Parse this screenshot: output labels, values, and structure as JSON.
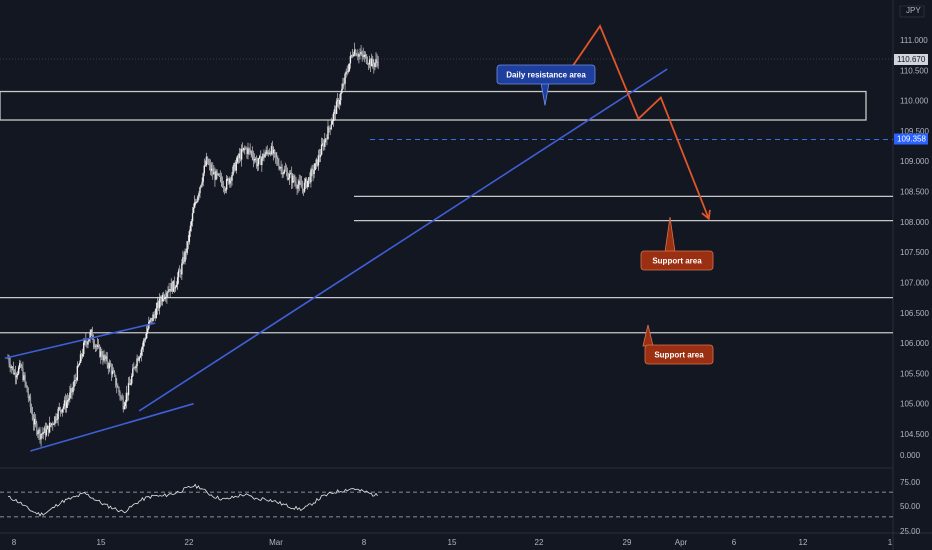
{
  "symbol_currency": "JPY",
  "colors": {
    "background": "#131722",
    "candle": "#e8e8e8",
    "trend": "#3f5fd8",
    "forecast": "#e0552a",
    "zone": "#c8c8c8",
    "dashed": "#3a6ee8",
    "callout_blue": "#1e3f9e",
    "callout_red": "#9a2f12"
  },
  "chart_data": {
    "type": "line",
    "price_axis": {
      "ticks": [
        "111.000",
        "110.500",
        "110.000",
        "109.500",
        "109.000",
        "108.500",
        "108.000",
        "107.500",
        "107.000",
        "106.500",
        "106.000",
        "105.500",
        "105.000",
        "104.500"
      ],
      "range": [
        104.26,
        111.4
      ]
    },
    "time_axis": {
      "labels": [
        "8",
        "15",
        "22",
        "Mar",
        "8",
        "15",
        "22",
        "29",
        "Apr",
        "6",
        "12",
        "1"
      ]
    },
    "current_price": "110.670",
    "level_tag": "109.358",
    "price_series": [
      {
        "d": 8,
        "v": 105.75
      },
      {
        "d": 9,
        "v": 105.5
      },
      {
        "d": 10,
        "v": 105.6
      },
      {
        "d": 11,
        "v": 105.2
      },
      {
        "d": 12,
        "v": 104.7
      },
      {
        "d": 13,
        "v": 104.5
      },
      {
        "d": 14,
        "v": 104.55
      },
      {
        "d": 15,
        "v": 104.7
      },
      {
        "d": 16,
        "v": 104.9
      },
      {
        "d": 17,
        "v": 105.0
      },
      {
        "d": 18,
        "v": 105.2
      },
      {
        "d": 19,
        "v": 105.6
      },
      {
        "d": 20,
        "v": 106.0
      },
      {
        "d": 21,
        "v": 106.15
      },
      {
        "d": 22,
        "v": 105.9
      },
      {
        "d": 23,
        "v": 105.75
      },
      {
        "d": 24,
        "v": 105.6
      },
      {
        "d": 25,
        "v": 105.3
      },
      {
        "d": 26,
        "v": 105.0
      },
      {
        "d": 27,
        "v": 105.3
      },
      {
        "d": 28,
        "v": 105.7
      },
      {
        "d": 29,
        "v": 105.95
      },
      {
        "d": 30,
        "v": 106.3
      },
      {
        "d": 31,
        "v": 106.5
      },
      {
        "d": 32,
        "v": 106.75
      },
      {
        "d": 33,
        "v": 106.9
      },
      {
        "d": 34,
        "v": 106.95
      },
      {
        "d": 35,
        "v": 107.2
      },
      {
        "d": 36,
        "v": 107.6
      },
      {
        "d": 37,
        "v": 108.2
      },
      {
        "d": 38,
        "v": 108.6
      },
      {
        "d": 39,
        "v": 109.0
      },
      {
        "d": 40,
        "v": 108.8
      },
      {
        "d": 41,
        "v": 108.7
      },
      {
        "d": 42,
        "v": 108.6
      },
      {
        "d": 43,
        "v": 108.8
      },
      {
        "d": 44,
        "v": 109.05
      },
      {
        "d": 45,
        "v": 109.2
      },
      {
        "d": 46,
        "v": 109.15
      },
      {
        "d": 47,
        "v": 108.95
      },
      {
        "d": 48,
        "v": 109.1
      },
      {
        "d": 49,
        "v": 109.2
      },
      {
        "d": 50,
        "v": 109.0
      },
      {
        "d": 51,
        "v": 108.85
      },
      {
        "d": 52,
        "v": 108.75
      },
      {
        "d": 53,
        "v": 108.65
      },
      {
        "d": 54,
        "v": 108.55
      },
      {
        "d": 55,
        "v": 108.7
      },
      {
        "d": 56,
        "v": 108.9
      },
      {
        "d": 57,
        "v": 109.2
      },
      {
        "d": 58,
        "v": 109.5
      },
      {
        "d": 59,
        "v": 109.8
      },
      {
        "d": 60,
        "v": 110.1
      },
      {
        "d": 61,
        "v": 110.5
      },
      {
        "d": 62,
        "v": 110.85
      },
      {
        "d": 63,
        "v": 110.75
      },
      {
        "d": 64,
        "v": 110.7
      },
      {
        "d": 65,
        "v": 110.6
      },
      {
        "d": 66,
        "v": 110.67
      }
    ],
    "drawings": {
      "resistance_zone": [
        109.68,
        110.15
      ],
      "support_lines": [
        108.42,
        108.02,
        106.75,
        106.17
      ],
      "dashed_level": 109.358,
      "lower_channel": [
        {
          "d": 11.5,
          "v": 104.22
        },
        {
          "d": 37,
          "v": 105.0
        }
      ],
      "upper_channel": [
        {
          "d": 7.5,
          "v": 105.75
        },
        {
          "d": 31,
          "v": 106.33
        }
      ],
      "main_trend": [
        {
          "d": 28.5,
          "v": 104.88
        },
        {
          "d": 111,
          "v": 110.52
        }
      ],
      "forecast_path": [
        {
          "d": 95,
          "v": 110.38
        },
        {
          "d": 100.5,
          "v": 111.23
        },
        {
          "d": 106.5,
          "v": 109.7
        },
        {
          "d": 110,
          "v": 110.05
        },
        {
          "d": 117.5,
          "v": 108.05
        }
      ]
    },
    "callouts": [
      {
        "text": "Daily resistance area",
        "anchor": {
          "d": 71,
          "v": 109.92
        },
        "style": "blue"
      },
      {
        "text": "Support area",
        "anchor": {
          "d": 86,
          "v": 108.08
        },
        "style": "red"
      },
      {
        "text": "Support area",
        "anchor": {
          "d": 86,
          "v": 106.3
        },
        "style": "red"
      }
    ],
    "rsi": {
      "ticks": [
        "0.000",
        "75.00",
        "50.00",
        "25.00"
      ],
      "upper": 70,
      "lower": 30,
      "range": [
        0,
        100
      ],
      "series": [
        {
          "d": 8,
          "v": 62
        },
        {
          "d": 9,
          "v": 58
        },
        {
          "d": 10,
          "v": 52
        },
        {
          "d": 11,
          "v": 44
        },
        {
          "d": 12,
          "v": 38
        },
        {
          "d": 13,
          "v": 34
        },
        {
          "d": 14,
          "v": 37
        },
        {
          "d": 15,
          "v": 44
        },
        {
          "d": 16,
          "v": 52
        },
        {
          "d": 17,
          "v": 57
        },
        {
          "d": 18,
          "v": 60
        },
        {
          "d": 19,
          "v": 64
        },
        {
          "d": 20,
          "v": 68
        },
        {
          "d": 21,
          "v": 62
        },
        {
          "d": 22,
          "v": 56
        },
        {
          "d": 23,
          "v": 50
        },
        {
          "d": 24,
          "v": 46
        },
        {
          "d": 25,
          "v": 42
        },
        {
          "d": 26,
          "v": 38
        },
        {
          "d": 27,
          "v": 44
        },
        {
          "d": 28,
          "v": 52
        },
        {
          "d": 29,
          "v": 58
        },
        {
          "d": 30,
          "v": 62
        },
        {
          "d": 31,
          "v": 64
        },
        {
          "d": 32,
          "v": 63
        },
        {
          "d": 33,
          "v": 66
        },
        {
          "d": 34,
          "v": 68
        },
        {
          "d": 35,
          "v": 72
        },
        {
          "d": 36,
          "v": 76
        },
        {
          "d": 37,
          "v": 80
        },
        {
          "d": 38,
          "v": 78
        },
        {
          "d": 39,
          "v": 70
        },
        {
          "d": 40,
          "v": 64
        },
        {
          "d": 41,
          "v": 60
        },
        {
          "d": 42,
          "v": 58
        },
        {
          "d": 43,
          "v": 61
        },
        {
          "d": 44,
          "v": 64
        },
        {
          "d": 45,
          "v": 66
        },
        {
          "d": 46,
          "v": 62
        },
        {
          "d": 47,
          "v": 58
        },
        {
          "d": 48,
          "v": 60
        },
        {
          "d": 49,
          "v": 57
        },
        {
          "d": 50,
          "v": 54
        },
        {
          "d": 51,
          "v": 50
        },
        {
          "d": 52,
          "v": 47
        },
        {
          "d": 53,
          "v": 44
        },
        {
          "d": 54,
          "v": 42
        },
        {
          "d": 55,
          "v": 48
        },
        {
          "d": 56,
          "v": 55
        },
        {
          "d": 57,
          "v": 62
        },
        {
          "d": 58,
          "v": 66
        },
        {
          "d": 59,
          "v": 70
        },
        {
          "d": 60,
          "v": 72
        },
        {
          "d": 61,
          "v": 74
        },
        {
          "d": 62,
          "v": 76
        },
        {
          "d": 63,
          "v": 72
        },
        {
          "d": 64,
          "v": 70
        },
        {
          "d": 65,
          "v": 66
        },
        {
          "d": 66,
          "v": 64
        }
      ]
    }
  }
}
